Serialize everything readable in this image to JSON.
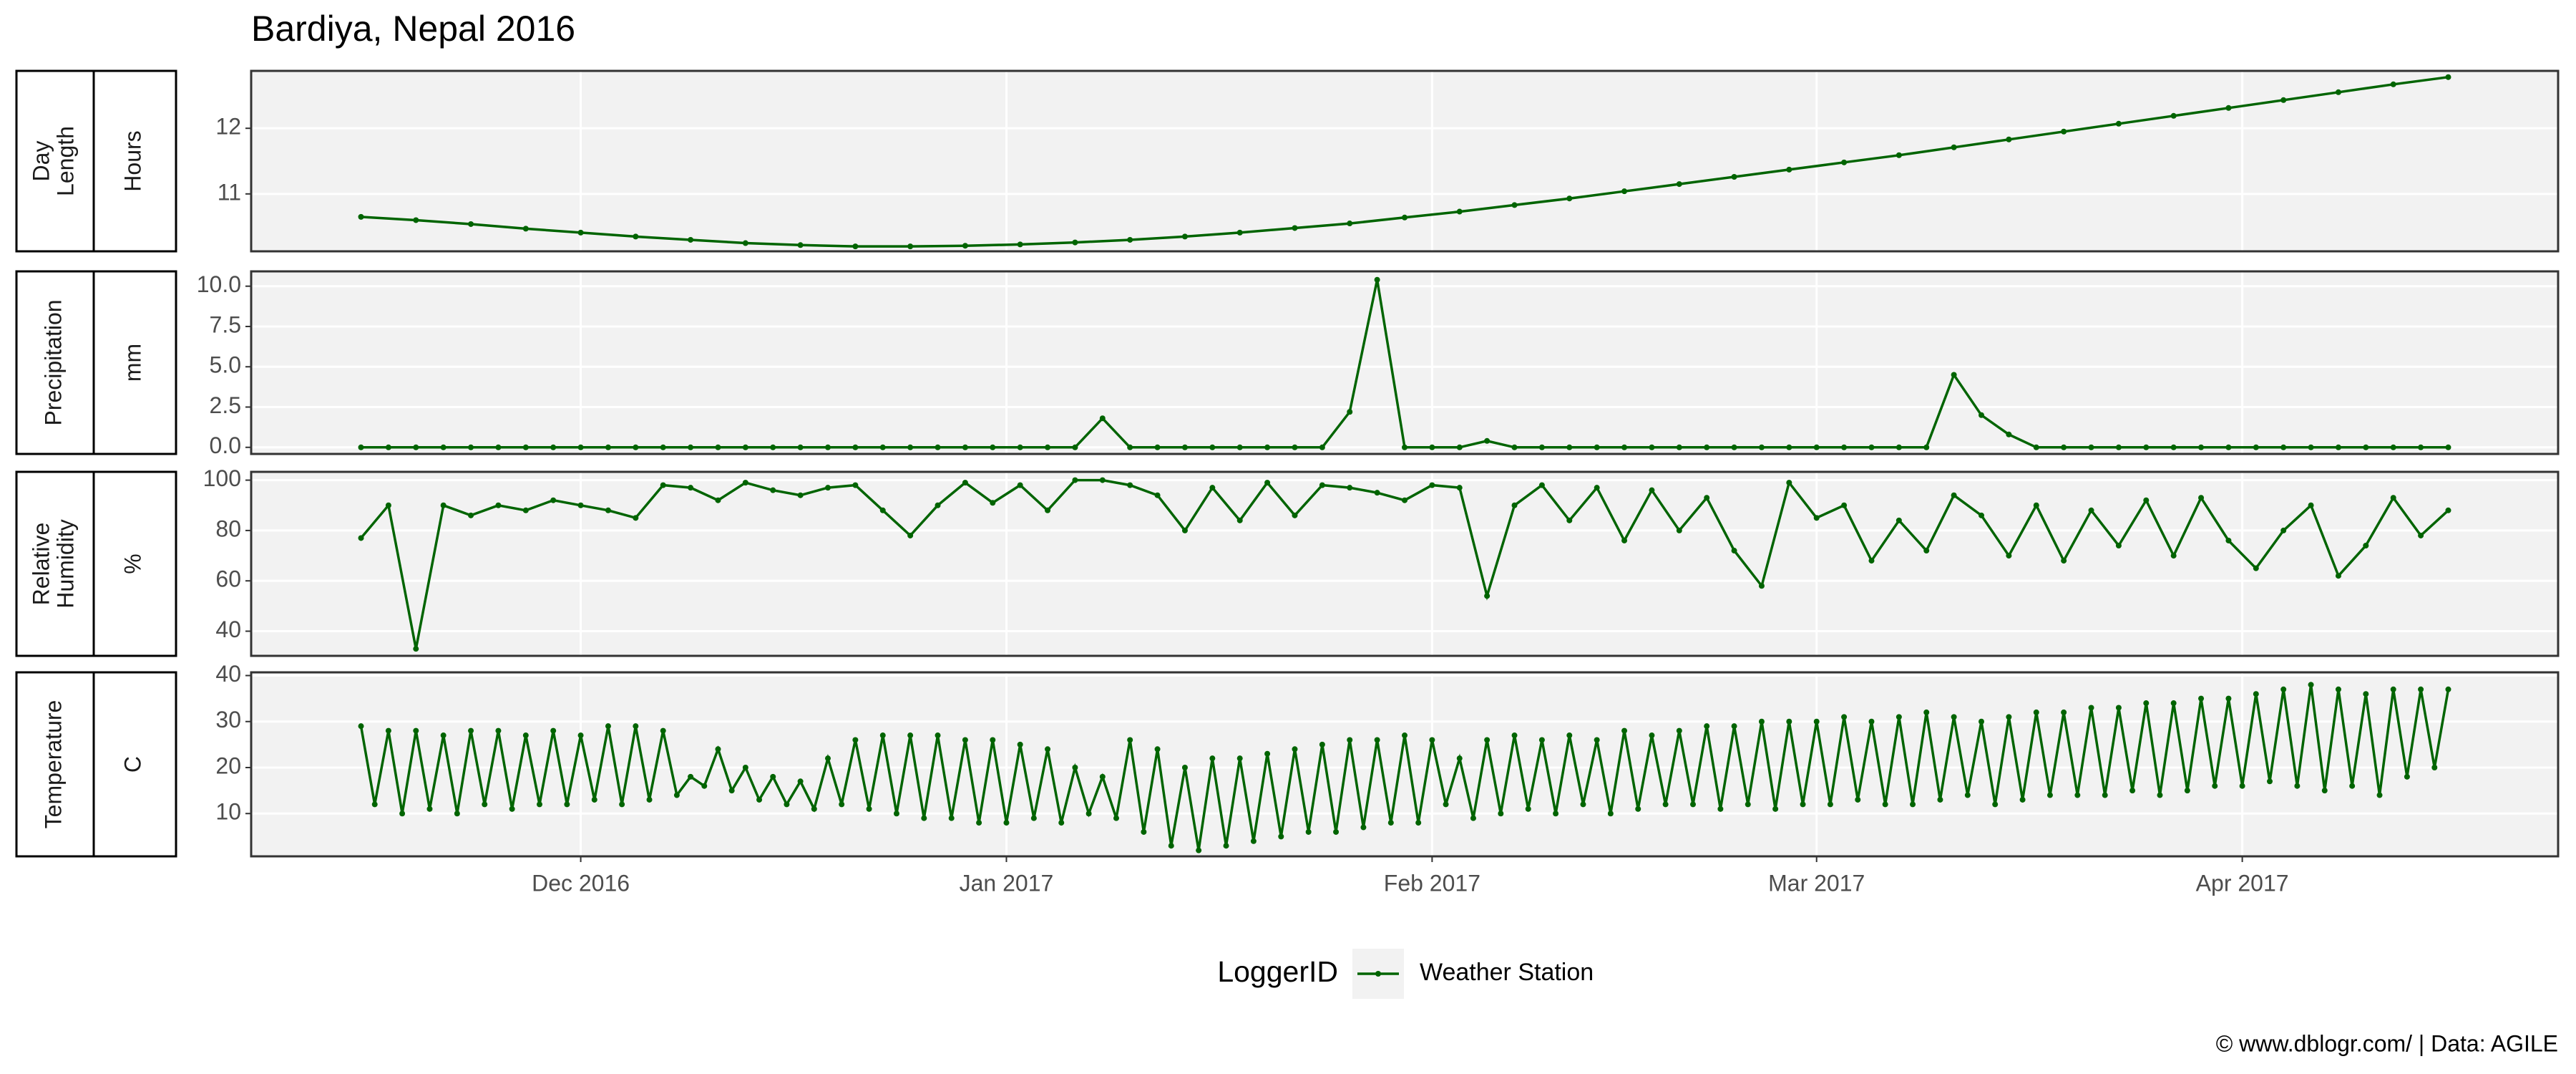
{
  "title": "Bardiya, Nepal 2016",
  "legend": {
    "title": "LoggerID"
  },
  "caption": "© www.dblogr.com/  |  Data: AGILE",
  "chart_data": [
    {
      "type": "line",
      "strip": [
        "Day",
        "Length"
      ],
      "ylabel": "Hours",
      "ylim": [
        10.125,
        12.875
      ],
      "yticks": [
        11,
        12
      ],
      "grid": true,
      "x": [
        "2016-11-15",
        "2016-11-19",
        "2016-11-23",
        "2016-11-27",
        "2016-12-01",
        "2016-12-05",
        "2016-12-09",
        "2016-12-13",
        "2016-12-17",
        "2016-12-21",
        "2016-12-25",
        "2016-12-29",
        "2017-01-02",
        "2017-01-06",
        "2017-01-10",
        "2017-01-14",
        "2017-01-18",
        "2017-01-22",
        "2017-01-26",
        "2017-01-30",
        "2017-02-03",
        "2017-02-07",
        "2017-02-11",
        "2017-02-15",
        "2017-02-19",
        "2017-02-23",
        "2017-02-27",
        "2017-03-03",
        "2017-03-07",
        "2017-03-11",
        "2017-03-15",
        "2017-03-19",
        "2017-03-23",
        "2017-03-27",
        "2017-03-31",
        "2017-04-04",
        "2017-04-08",
        "2017-04-12",
        "2017-04-16"
      ],
      "series": [
        {
          "name": "Weather Station",
          "color": "#006400",
          "values": [
            10.65,
            10.6,
            10.54,
            10.47,
            10.41,
            10.35,
            10.3,
            10.25,
            10.22,
            10.2,
            10.2,
            10.21,
            10.23,
            10.26,
            10.3,
            10.35,
            10.41,
            10.48,
            10.55,
            10.64,
            10.73,
            10.83,
            10.93,
            11.04,
            11.15,
            11.26,
            11.37,
            11.48,
            11.59,
            11.71,
            11.83,
            11.95,
            12.07,
            12.19,
            12.31,
            12.43,
            12.55,
            12.67,
            12.78
          ]
        }
      ]
    },
    {
      "type": "line",
      "strip": [
        "Precipitation"
      ],
      "ylabel": "mm",
      "ylim": [
        -0.41,
        10.92
      ],
      "yticks": [
        {
          "value": 0,
          "label": "0.0"
        },
        {
          "value": 2.5,
          "label": "2.5"
        },
        {
          "value": 5,
          "label": "5.0"
        },
        {
          "value": 7.5,
          "label": "7.5"
        },
        {
          "value": 10,
          "label": "10.0"
        }
      ],
      "grid": true,
      "x": [
        "2016-11-15",
        "2016-11-17",
        "2016-11-19",
        "2016-11-21",
        "2016-11-23",
        "2016-11-25",
        "2016-11-27",
        "2016-11-29",
        "2016-12-01",
        "2016-12-03",
        "2016-12-05",
        "2016-12-07",
        "2016-12-09",
        "2016-12-11",
        "2016-12-13",
        "2016-12-15",
        "2016-12-17",
        "2016-12-19",
        "2016-12-21",
        "2016-12-23",
        "2016-12-25",
        "2016-12-27",
        "2016-12-29",
        "2016-12-31",
        "2017-01-02",
        "2017-01-04",
        "2017-01-06",
        "2017-01-08",
        "2017-01-10",
        "2017-01-12",
        "2017-01-14",
        "2017-01-16",
        "2017-01-18",
        "2017-01-20",
        "2017-01-22",
        "2017-01-24",
        "2017-01-26",
        "2017-01-28",
        "2017-01-30",
        "2017-02-01",
        "2017-02-03",
        "2017-02-05",
        "2017-02-07",
        "2017-02-09",
        "2017-02-11",
        "2017-02-13",
        "2017-02-15",
        "2017-02-17",
        "2017-02-19",
        "2017-02-21",
        "2017-02-23",
        "2017-02-25",
        "2017-02-27",
        "2017-03-01",
        "2017-03-03",
        "2017-03-05",
        "2017-03-07",
        "2017-03-09",
        "2017-03-11",
        "2017-03-13",
        "2017-03-15",
        "2017-03-17",
        "2017-03-19",
        "2017-03-21",
        "2017-03-23",
        "2017-03-25",
        "2017-03-27",
        "2017-03-29",
        "2017-03-31",
        "2017-04-02",
        "2017-04-04",
        "2017-04-06",
        "2017-04-08",
        "2017-04-10",
        "2017-04-12",
        "2017-04-14",
        "2017-04-16"
      ],
      "series": [
        {
          "name": "Weather Station",
          "color": "#006400",
          "values": [
            0,
            0,
            0,
            0,
            0,
            0,
            0,
            0,
            0,
            0,
            0,
            0,
            0,
            0,
            0,
            0,
            0,
            0,
            0,
            0,
            0,
            0,
            0,
            0,
            0,
            0,
            0,
            1.8,
            0,
            0,
            0,
            0,
            0,
            0,
            0,
            0,
            2.2,
            10.4,
            0,
            0,
            0,
            0.4,
            0,
            0,
            0,
            0,
            0,
            0,
            0,
            0,
            0,
            0,
            0,
            0,
            0,
            0,
            0,
            0,
            4.5,
            2.0,
            0.8,
            0,
            0,
            0,
            0,
            0,
            0,
            0,
            0,
            0,
            0,
            0,
            0,
            0,
            0,
            0,
            0
          ]
        }
      ]
    },
    {
      "type": "line",
      "strip": [
        "Relative",
        "Humidity"
      ],
      "ylabel": "%",
      "ylim": [
        30.2,
        103.3
      ],
      "yticks": [
        40,
        60,
        80,
        100
      ],
      "grid": true,
      "x": [
        "2016-11-15",
        "2016-11-17",
        "2016-11-19",
        "2016-11-21",
        "2016-11-23",
        "2016-11-25",
        "2016-11-27",
        "2016-11-29",
        "2016-12-01",
        "2016-12-03",
        "2016-12-05",
        "2016-12-07",
        "2016-12-09",
        "2016-12-11",
        "2016-12-13",
        "2016-12-15",
        "2016-12-17",
        "2016-12-19",
        "2016-12-21",
        "2016-12-23",
        "2016-12-25",
        "2016-12-27",
        "2016-12-29",
        "2016-12-31",
        "2017-01-02",
        "2017-01-04",
        "2017-01-06",
        "2017-01-08",
        "2017-01-10",
        "2017-01-12",
        "2017-01-14",
        "2017-01-16",
        "2017-01-18",
        "2017-01-20",
        "2017-01-22",
        "2017-01-24",
        "2017-01-26",
        "2017-01-28",
        "2017-01-30",
        "2017-02-01",
        "2017-02-03",
        "2017-02-05",
        "2017-02-07",
        "2017-02-09",
        "2017-02-11",
        "2017-02-13",
        "2017-02-15",
        "2017-02-17",
        "2017-02-19",
        "2017-02-21",
        "2017-02-23",
        "2017-02-25",
        "2017-02-27",
        "2017-03-01",
        "2017-03-03",
        "2017-03-05",
        "2017-03-07",
        "2017-03-09",
        "2017-03-11",
        "2017-03-13",
        "2017-03-15",
        "2017-03-17",
        "2017-03-19",
        "2017-03-21",
        "2017-03-23",
        "2017-03-25",
        "2017-03-27",
        "2017-03-29",
        "2017-03-31",
        "2017-04-02",
        "2017-04-04",
        "2017-04-06",
        "2017-04-08",
        "2017-04-10",
        "2017-04-12",
        "2017-04-14",
        "2017-04-16"
      ],
      "series": [
        {
          "name": "Weather Station",
          "color": "#006400",
          "values": [
            77,
            90,
            33,
            90,
            86,
            90,
            88,
            92,
            90,
            88,
            85,
            98,
            97,
            92,
            99,
            96,
            94,
            97,
            98,
            88,
            78,
            90,
            99,
            91,
            98,
            88,
            100,
            100,
            98,
            94,
            80,
            97,
            84,
            99,
            86,
            98,
            97,
            95,
            92,
            98,
            97,
            54,
            90,
            98,
            84,
            97,
            76,
            96,
            80,
            93,
            72,
            58,
            99,
            85,
            90,
            68,
            84,
            72,
            94,
            86,
            70,
            90,
            68,
            88,
            74,
            92,
            70,
            93,
            76,
            65,
            80,
            90,
            62,
            74,
            93,
            78,
            88
          ]
        }
      ]
    },
    {
      "type": "line",
      "strip": [
        "Temperature"
      ],
      "ylabel": "C",
      "ylim": [
        0.7,
        40.7
      ],
      "yticks": [
        10,
        20,
        30,
        40
      ],
      "grid": true,
      "xlim": [
        "2016-11-07",
        "2017-04-24"
      ],
      "xticks": [
        {
          "value": "2016-12-01",
          "label": "Dec 2016"
        },
        {
          "value": "2017-01-01",
          "label": "Jan 2017"
        },
        {
          "value": "2017-02-01",
          "label": "Feb 2017"
        },
        {
          "value": "2017-03-01",
          "label": "Mar 2017"
        },
        {
          "value": "2017-04-01",
          "label": "Apr 2017"
        }
      ],
      "x": [
        "2016-11-15",
        "2016-11-16",
        "2016-11-17",
        "2016-11-18",
        "2016-11-19",
        "2016-11-20",
        "2016-11-21",
        "2016-11-22",
        "2016-11-23",
        "2016-11-24",
        "2016-11-25",
        "2016-11-26",
        "2016-11-27",
        "2016-11-28",
        "2016-11-29",
        "2016-11-30",
        "2016-12-01",
        "2016-12-02",
        "2016-12-03",
        "2016-12-04",
        "2016-12-05",
        "2016-12-06",
        "2016-12-07",
        "2016-12-08",
        "2016-12-09",
        "2016-12-10",
        "2016-12-11",
        "2016-12-12",
        "2016-12-13",
        "2016-12-14",
        "2016-12-15",
        "2016-12-16",
        "2016-12-17",
        "2016-12-18",
        "2016-12-19",
        "2016-12-20",
        "2016-12-21",
        "2016-12-22",
        "2016-12-23",
        "2016-12-24",
        "2016-12-25",
        "2016-12-26",
        "2016-12-27",
        "2016-12-28",
        "2016-12-29",
        "2016-12-30",
        "2016-12-31",
        "2017-01-01",
        "2017-01-02",
        "2017-01-03",
        "2017-01-04",
        "2017-01-05",
        "2017-01-06",
        "2017-01-07",
        "2017-01-08",
        "2017-01-09",
        "2017-01-10",
        "2017-01-11",
        "2017-01-12",
        "2017-01-13",
        "2017-01-14",
        "2017-01-15",
        "2017-01-16",
        "2017-01-17",
        "2017-01-18",
        "2017-01-19",
        "2017-01-20",
        "2017-01-21",
        "2017-01-22",
        "2017-01-23",
        "2017-01-24",
        "2017-01-25",
        "2017-01-26",
        "2017-01-27",
        "2017-01-28",
        "2017-01-29",
        "2017-01-30",
        "2017-01-31",
        "2017-02-01",
        "2017-02-02",
        "2017-02-03",
        "2017-02-04",
        "2017-02-05",
        "2017-02-06",
        "2017-02-07",
        "2017-02-08",
        "2017-02-09",
        "2017-02-10",
        "2017-02-11",
        "2017-02-12",
        "2017-02-13",
        "2017-02-14",
        "2017-02-15",
        "2017-02-16",
        "2017-02-17",
        "2017-02-18",
        "2017-02-19",
        "2017-02-20",
        "2017-02-21",
        "2017-02-22",
        "2017-02-23",
        "2017-02-24",
        "2017-02-25",
        "2017-02-26",
        "2017-02-27",
        "2017-02-28",
        "2017-03-01",
        "2017-03-02",
        "2017-03-03",
        "2017-03-04",
        "2017-03-05",
        "2017-03-06",
        "2017-03-07",
        "2017-03-08",
        "2017-03-09",
        "2017-03-10",
        "2017-03-11",
        "2017-03-12",
        "2017-03-13",
        "2017-03-14",
        "2017-03-15",
        "2017-03-16",
        "2017-03-17",
        "2017-03-18",
        "2017-03-19",
        "2017-03-20",
        "2017-03-21",
        "2017-03-22",
        "2017-03-23",
        "2017-03-24",
        "2017-03-25",
        "2017-03-26",
        "2017-03-27",
        "2017-03-28",
        "2017-03-29",
        "2017-03-30",
        "2017-03-31",
        "2017-04-01",
        "2017-04-02",
        "2017-04-03",
        "2017-04-04",
        "2017-04-05",
        "2017-04-06",
        "2017-04-07",
        "2017-04-08",
        "2017-04-09",
        "2017-04-10",
        "2017-04-11",
        "2017-04-12",
        "2017-04-13",
        "2017-04-14",
        "2017-04-15",
        "2017-04-16"
      ],
      "series": [
        {
          "name": "Weather Station",
          "color": "#006400",
          "values": [
            29,
            12,
            28,
            10,
            28,
            11,
            27,
            10,
            28,
            12,
            28,
            11,
            27,
            12,
            28,
            12,
            27,
            13,
            29,
            12,
            29,
            13,
            28,
            14,
            18,
            16,
            24,
            15,
            20,
            13,
            18,
            12,
            17,
            11,
            22,
            12,
            26,
            11,
            27,
            10,
            27,
            9,
            27,
            9,
            26,
            8,
            26,
            8,
            25,
            9,
            24,
            8,
            20,
            10,
            18,
            9,
            26,
            6,
            24,
            3,
            20,
            2,
            22,
            3,
            22,
            4,
            23,
            5,
            24,
            6,
            25,
            6,
            26,
            7,
            26,
            8,
            27,
            8,
            26,
            12,
            22,
            9,
            26,
            10,
            27,
            11,
            26,
            10,
            27,
            12,
            26,
            10,
            28,
            11,
            27,
            12,
            28,
            12,
            29,
            11,
            29,
            12,
            30,
            11,
            30,
            12,
            30,
            12,
            31,
            13,
            30,
            12,
            31,
            12,
            32,
            13,
            31,
            14,
            30,
            12,
            31,
            13,
            32,
            14,
            32,
            14,
            33,
            14,
            33,
            15,
            34,
            14,
            34,
            15,
            35,
            16,
            35,
            16,
            36,
            17,
            37,
            16,
            38,
            15,
            37,
            16,
            36,
            14,
            37,
            18,
            37,
            20,
            37
          ]
        }
      ]
    }
  ]
}
